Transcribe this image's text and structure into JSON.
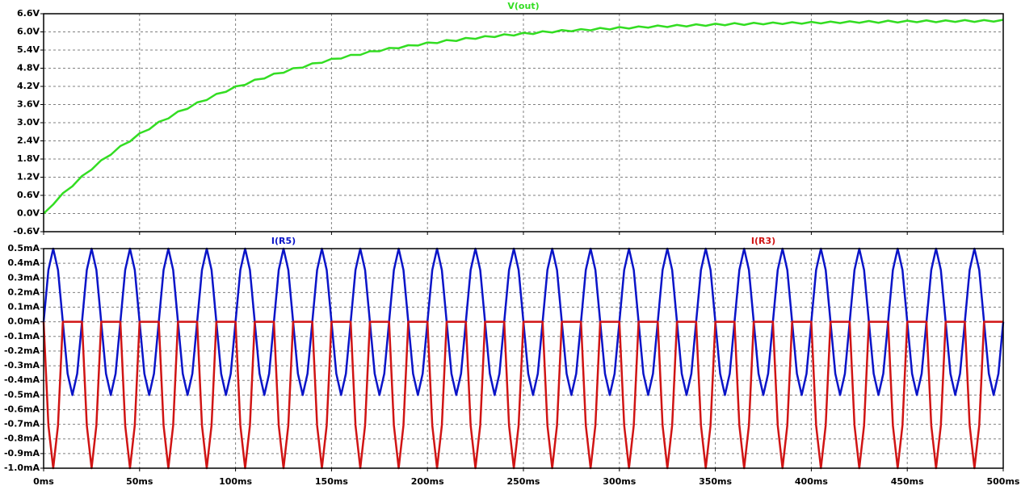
{
  "chart_data": [
    {
      "type": "line",
      "x": [
        0,
        5,
        10,
        15,
        20,
        25,
        30,
        35,
        40,
        45,
        50,
        55,
        60,
        65,
        70,
        75,
        80,
        85,
        90,
        95,
        100,
        105,
        110,
        115,
        120,
        125,
        130,
        135,
        140,
        145,
        150,
        155,
        160,
        165,
        170,
        175,
        180,
        185,
        190,
        195,
        200,
        205,
        210,
        215,
        220,
        225,
        230,
        235,
        240,
        245,
        250,
        255,
        260,
        265,
        270,
        275,
        280,
        285,
        290,
        295,
        300,
        305,
        310,
        315,
        320,
        325,
        330,
        335,
        340,
        345,
        350,
        355,
        360,
        365,
        370,
        375,
        380,
        385,
        390,
        395,
        400,
        405,
        410,
        415,
        420,
        425,
        430,
        435,
        440,
        445,
        450,
        455,
        460,
        465,
        470,
        475,
        480,
        485,
        490,
        495,
        500
      ],
      "series": [
        {
          "name": "V(out)",
          "color": "#33dd22",
          "values": [
            0,
            0.3,
            0.67,
            0.9,
            1.24,
            1.45,
            1.76,
            1.94,
            2.23,
            2.38,
            2.65,
            2.78,
            3.03,
            3.14,
            3.37,
            3.46,
            3.67,
            3.75,
            3.95,
            4.02,
            4.2,
            4.25,
            4.42,
            4.46,
            4.62,
            4.65,
            4.8,
            4.82,
            4.96,
            4.98,
            5.11,
            5.12,
            5.24,
            5.24,
            5.36,
            5.36,
            5.47,
            5.46,
            5.56,
            5.55,
            5.65,
            5.63,
            5.73,
            5.7,
            5.8,
            5.77,
            5.86,
            5.83,
            5.92,
            5.88,
            5.97,
            5.93,
            6.02,
            5.98,
            6.06,
            6.02,
            6.09,
            6.05,
            6.13,
            6.08,
            6.16,
            6.11,
            6.18,
            6.14,
            6.21,
            6.16,
            6.23,
            6.18,
            6.25,
            6.2,
            6.27,
            6.22,
            6.29,
            6.23,
            6.3,
            6.25,
            6.31,
            6.26,
            6.32,
            6.27,
            6.33,
            6.28,
            6.34,
            6.29,
            6.35,
            6.3,
            6.36,
            6.3,
            6.37,
            6.31,
            6.37,
            6.32,
            6.38,
            6.32,
            6.38,
            6.33,
            6.39,
            6.33,
            6.39,
            6.34,
            6.4
          ]
        }
      ],
      "xlim": [
        0,
        500
      ],
      "xticks": [
        0,
        50,
        100,
        150,
        200,
        250,
        300,
        350,
        400,
        450,
        500
      ],
      "ylim": [
        -0.6,
        6.6
      ],
      "yticks": [
        {
          "value": -0.6,
          "label": "-0.6V"
        },
        {
          "value": 0,
          "label": "0.0V"
        },
        {
          "value": 0.6,
          "label": "0.6V"
        },
        {
          "value": 1.2,
          "label": "1.2V"
        },
        {
          "value": 1.8,
          "label": "1.8V"
        },
        {
          "value": 2.4,
          "label": "2.4V"
        },
        {
          "value": 3.0,
          "label": "3.0V"
        },
        {
          "value": 3.6,
          "label": "3.6V"
        },
        {
          "value": 4.2,
          "label": "4.2V"
        },
        {
          "value": 4.8,
          "label": "4.8V"
        },
        {
          "value": 5.4,
          "label": "5.4V"
        },
        {
          "value": 6.0,
          "label": "6.0V"
        },
        {
          "value": 6.6,
          "label": "6.6V"
        }
      ],
      "grid": true
    },
    {
      "type": "line",
      "x": [
        0,
        2.5,
        5,
        7.5,
        10,
        12.5,
        15,
        17.5,
        20,
        22.5,
        25,
        27.5,
        30,
        32.5,
        35,
        37.5,
        40,
        42.5,
        45,
        47.5,
        50,
        52.5,
        55,
        57.5,
        60,
        62.5,
        65,
        67.5,
        70,
        72.5,
        75,
        77.5,
        80,
        82.5,
        85,
        87.5,
        90,
        92.5,
        95,
        97.5,
        100,
        102.5,
        105,
        107.5,
        110,
        112.5,
        115,
        117.5,
        120,
        122.5,
        125,
        127.5,
        130,
        132.5,
        135,
        137.5,
        140,
        142.5,
        145,
        147.5,
        150,
        152.5,
        155,
        157.5,
        160,
        162.5,
        165,
        167.5,
        170,
        172.5,
        175,
        177.5,
        180,
        182.5,
        185,
        187.5,
        190,
        192.5,
        195,
        197.5,
        200,
        202.5,
        205,
        207.5,
        210,
        212.5,
        215,
        217.5,
        220,
        222.5,
        225,
        227.5,
        230,
        232.5,
        235,
        237.5,
        240,
        242.5,
        245,
        247.5,
        250,
        252.5,
        255,
        257.5,
        260,
        262.5,
        265,
        267.5,
        270,
        272.5,
        275,
        277.5,
        280,
        282.5,
        285,
        287.5,
        290,
        292.5,
        295,
        297.5,
        300,
        302.5,
        305,
        307.5,
        310,
        312.5,
        315,
        317.5,
        320,
        322.5,
        325,
        327.5,
        330,
        332.5,
        335,
        337.5,
        340,
        342.5,
        345,
        347.5,
        350,
        352.5,
        355,
        357.5,
        360,
        362.5,
        365,
        367.5,
        370,
        372.5,
        375,
        377.5,
        380,
        382.5,
        385,
        387.5,
        390,
        392.5,
        395,
        397.5,
        400,
        402.5,
        405,
        407.5,
        410,
        412.5,
        415,
        417.5,
        420,
        422.5,
        425,
        427.5,
        430,
        432.5,
        435,
        437.5,
        440,
        442.5,
        445,
        447.5,
        450,
        452.5,
        455,
        457.5,
        460,
        462.5,
        465,
        467.5,
        470,
        472.5,
        475,
        477.5,
        480,
        482.5,
        485,
        487.5,
        490,
        492.5,
        495,
        497.5,
        500
      ],
      "series": [
        {
          "name": "I(R5)",
          "color": "#0a14c8",
          "values": [
            0,
            0.354,
            0.5,
            0.354,
            0,
            -0.354,
            -0.5,
            -0.354,
            0,
            0.354,
            0.5,
            0.354,
            0,
            -0.354,
            -0.5,
            -0.354,
            0,
            0.354,
            0.5,
            0.354,
            0,
            -0.354,
            -0.5,
            -0.354,
            0,
            0.354,
            0.5,
            0.354,
            0,
            -0.354,
            -0.5,
            -0.354,
            0,
            0.354,
            0.5,
            0.354,
            0,
            -0.354,
            -0.5,
            -0.354,
            0,
            0.354,
            0.5,
            0.354,
            0,
            -0.354,
            -0.5,
            -0.354,
            0,
            0.354,
            0.5,
            0.354,
            0,
            -0.354,
            -0.5,
            -0.354,
            0,
            0.354,
            0.5,
            0.354,
            0,
            -0.354,
            -0.5,
            -0.354,
            0,
            0.354,
            0.5,
            0.354,
            0,
            -0.354,
            -0.5,
            -0.354,
            0,
            0.354,
            0.5,
            0.354,
            0,
            -0.354,
            -0.5,
            -0.354,
            0,
            0.354,
            0.5,
            0.354,
            0,
            -0.354,
            -0.5,
            -0.354,
            0,
            0.354,
            0.5,
            0.354,
            0,
            -0.354,
            -0.5,
            -0.354,
            0,
            0.354,
            0.5,
            0.354,
            0,
            -0.354,
            -0.5,
            -0.354,
            0,
            0.354,
            0.5,
            0.354,
            0,
            -0.354,
            -0.5,
            -0.354,
            0,
            0.354,
            0.5,
            0.354,
            0,
            -0.354,
            -0.5,
            -0.354,
            0,
            0.354,
            0.5,
            0.354,
            0,
            -0.354,
            -0.5,
            -0.354,
            0,
            0.354,
            0.5,
            0.354,
            0,
            -0.354,
            -0.5,
            -0.354,
            0,
            0.354,
            0.5,
            0.354,
            0,
            -0.354,
            -0.5,
            -0.354,
            0,
            0.354,
            0.5,
            0.354,
            0,
            -0.354,
            -0.5,
            -0.354,
            0,
            0.354,
            0.5,
            0.354,
            0,
            -0.354,
            -0.5,
            -0.354,
            0,
            0.354,
            0.5,
            0.354,
            0,
            -0.354,
            -0.5,
            -0.354,
            0,
            0.354,
            0.5,
            0.354,
            0,
            -0.354,
            -0.5,
            -0.354,
            0,
            0.354,
            0.5,
            0.354,
            0,
            -0.354,
            -0.5,
            -0.354,
            0,
            0.354,
            0.5,
            0.354,
            0,
            -0.354,
            -0.5,
            -0.354,
            0,
            0.354,
            0.5,
            0.354,
            0,
            -0.354,
            -0.5,
            -0.354,
            0
          ]
        },
        {
          "name": "I(R3)",
          "color": "#d01414",
          "values": [
            0,
            -0.707,
            -1,
            -0.707,
            0,
            0,
            0,
            0,
            0,
            -0.707,
            -1,
            -0.707,
            0,
            0,
            0,
            0,
            0,
            -0.707,
            -1,
            -0.707,
            0,
            0,
            0,
            0,
            0,
            -0.707,
            -1,
            -0.707,
            0,
            0,
            0,
            0,
            0,
            -0.707,
            -1,
            -0.707,
            0,
            0,
            0,
            0,
            0,
            -0.707,
            -1,
            -0.707,
            0,
            0,
            0,
            0,
            0,
            -0.707,
            -1,
            -0.707,
            0,
            0,
            0,
            0,
            0,
            -0.707,
            -1,
            -0.707,
            0,
            0,
            0,
            0,
            0,
            -0.707,
            -1,
            -0.707,
            0,
            0,
            0,
            0,
            0,
            -0.707,
            -1,
            -0.707,
            0,
            0,
            0,
            0,
            0,
            -0.707,
            -1,
            -0.707,
            0,
            0,
            0,
            0,
            0,
            -0.707,
            -1,
            -0.707,
            0,
            0,
            0,
            0,
            0,
            -0.707,
            -1,
            -0.707,
            0,
            0,
            0,
            0,
            0,
            -0.707,
            -1,
            -0.707,
            0,
            0,
            0,
            0,
            0,
            -0.707,
            -1,
            -0.707,
            0,
            0,
            0,
            0,
            0,
            -0.707,
            -1,
            -0.707,
            0,
            0,
            0,
            0,
            0,
            -0.707,
            -1,
            -0.707,
            0,
            0,
            0,
            0,
            0,
            -0.707,
            -1,
            -0.707,
            0,
            0,
            0,
            0,
            0,
            -0.707,
            -1,
            -0.707,
            0,
            0,
            0,
            0,
            0,
            -0.707,
            -1,
            -0.707,
            0,
            0,
            0,
            0,
            0,
            -0.707,
            -1,
            -0.707,
            0,
            0,
            0,
            0,
            0,
            -0.707,
            -1,
            -0.707,
            0,
            0,
            0,
            0,
            0,
            -0.707,
            -1,
            -0.707,
            0,
            0,
            0,
            0,
            0,
            -0.707,
            -1,
            -0.707,
            0,
            0,
            0,
            0,
            0,
            -0.707,
            -1,
            -0.707,
            0,
            0,
            0,
            0,
            0
          ]
        }
      ],
      "xlim": [
        0,
        500
      ],
      "xticks": [
        {
          "value": 0,
          "label": "0ms"
        },
        {
          "value": 50,
          "label": "50ms"
        },
        {
          "value": 100,
          "label": "100ms"
        },
        {
          "value": 150,
          "label": "150ms"
        },
        {
          "value": 200,
          "label": "200ms"
        },
        {
          "value": 250,
          "label": "250ms"
        },
        {
          "value": 300,
          "label": "300ms"
        },
        {
          "value": 350,
          "label": "350ms"
        },
        {
          "value": 400,
          "label": "400ms"
        },
        {
          "value": 450,
          "label": "450ms"
        },
        {
          "value": 500,
          "label": "500ms"
        }
      ],
      "ylim": [
        -1.0,
        0.5
      ],
      "yticks": [
        {
          "value": -1.0,
          "label": "-1.0mA"
        },
        {
          "value": -0.9,
          "label": "-0.9mA"
        },
        {
          "value": -0.8,
          "label": "-0.8mA"
        },
        {
          "value": -0.7,
          "label": "-0.7mA"
        },
        {
          "value": -0.6,
          "label": "-0.6mA"
        },
        {
          "value": -0.5,
          "label": "-0.5mA"
        },
        {
          "value": -0.4,
          "label": "-0.4mA"
        },
        {
          "value": -0.3,
          "label": "-0.3mA"
        },
        {
          "value": -0.2,
          "label": "-0.2mA"
        },
        {
          "value": -0.1,
          "label": "-0.1mA"
        },
        {
          "value": 0,
          "label": "0.0mA"
        },
        {
          "value": 0.1,
          "label": "0.1mA"
        },
        {
          "value": 0.2,
          "label": "0.2mA"
        },
        {
          "value": 0.3,
          "label": "0.3mA"
        },
        {
          "value": 0.4,
          "label": "0.4mA"
        },
        {
          "value": 0.5,
          "label": "0.5mA"
        }
      ],
      "grid": true
    }
  ]
}
